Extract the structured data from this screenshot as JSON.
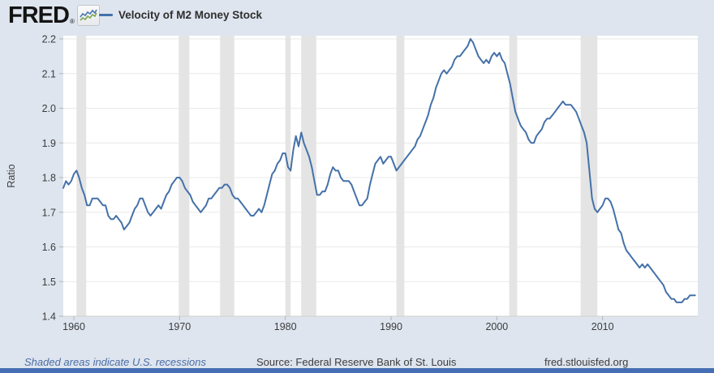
{
  "header": {
    "logo_text": "FRED",
    "logo_reg": "®"
  },
  "footer": {
    "recession_note": "Shaded areas indicate U.S. recessions",
    "source": "Source: Federal Reserve Bank of St. Louis",
    "site": "fred.stlouisfed.org"
  },
  "colors": {
    "page_bg": "#dee5ef",
    "plot_bg": "#ffffff",
    "line": "#4471a9",
    "recession_band": "#e4e4e4",
    "gridline": "#e9e9e9",
    "axis_line": "#cfcfcf",
    "tick_mark": "#b5b5b5",
    "axis_text": "#3c3c3c",
    "logo_icon_blue": "#4a77b4",
    "logo_icon_green": "#7ca653"
  },
  "chart_data": {
    "type": "line",
    "title": "Velocity of M2 Money Stock",
    "ylabel": "Ratio",
    "legend_position": "top",
    "grid": true,
    "frequency": "quarterly",
    "xlim": [
      1959,
      2019
    ],
    "ylim": [
      1.4,
      2.2
    ],
    "x_start": 1959.0,
    "x_step": 0.25,
    "y_ticks": [
      1.4,
      1.5,
      1.6,
      1.7,
      1.8,
      1.9,
      2.0,
      2.1,
      2.2
    ],
    "x_ticks": [
      1960,
      1970,
      1980,
      1990,
      2000,
      2010
    ],
    "recessions": [
      [
        1960.25,
        1961.17
      ],
      [
        1969.92,
        1970.92
      ],
      [
        1973.83,
        1975.17
      ],
      [
        1980.0,
        1980.5
      ],
      [
        1981.5,
        1982.92
      ],
      [
        1990.5,
        1991.25
      ],
      [
        2001.17,
        2001.92
      ],
      [
        2007.92,
        2009.5
      ]
    ],
    "values": [
      1.77,
      1.79,
      1.78,
      1.79,
      1.81,
      1.82,
      1.8,
      1.77,
      1.75,
      1.72,
      1.72,
      1.74,
      1.74,
      1.74,
      1.73,
      1.72,
      1.72,
      1.69,
      1.68,
      1.68,
      1.69,
      1.68,
      1.67,
      1.65,
      1.66,
      1.67,
      1.69,
      1.71,
      1.72,
      1.74,
      1.74,
      1.72,
      1.7,
      1.69,
      1.7,
      1.71,
      1.72,
      1.71,
      1.73,
      1.75,
      1.76,
      1.78,
      1.79,
      1.8,
      1.8,
      1.79,
      1.77,
      1.76,
      1.75,
      1.73,
      1.72,
      1.71,
      1.7,
      1.71,
      1.72,
      1.74,
      1.74,
      1.75,
      1.76,
      1.77,
      1.77,
      1.78,
      1.78,
      1.77,
      1.75,
      1.74,
      1.74,
      1.73,
      1.72,
      1.71,
      1.7,
      1.69,
      1.69,
      1.7,
      1.71,
      1.7,
      1.72,
      1.75,
      1.78,
      1.81,
      1.82,
      1.84,
      1.85,
      1.87,
      1.87,
      1.83,
      1.82,
      1.88,
      1.92,
      1.89,
      1.93,
      1.9,
      1.88,
      1.86,
      1.83,
      1.79,
      1.75,
      1.75,
      1.76,
      1.76,
      1.78,
      1.81,
      1.83,
      1.82,
      1.82,
      1.8,
      1.79,
      1.79,
      1.79,
      1.78,
      1.76,
      1.74,
      1.72,
      1.72,
      1.73,
      1.74,
      1.78,
      1.81,
      1.84,
      1.85,
      1.86,
      1.84,
      1.85,
      1.86,
      1.86,
      1.84,
      1.82,
      1.83,
      1.84,
      1.85,
      1.86,
      1.87,
      1.88,
      1.89,
      1.91,
      1.92,
      1.94,
      1.96,
      1.98,
      2.01,
      2.03,
      2.06,
      2.08,
      2.1,
      2.11,
      2.1,
      2.11,
      2.12,
      2.14,
      2.15,
      2.15,
      2.16,
      2.17,
      2.18,
      2.2,
      2.19,
      2.17,
      2.15,
      2.14,
      2.13,
      2.14,
      2.13,
      2.15,
      2.16,
      2.15,
      2.16,
      2.14,
      2.13,
      2.1,
      2.07,
      2.03,
      1.99,
      1.97,
      1.95,
      1.94,
      1.93,
      1.91,
      1.9,
      1.9,
      1.92,
      1.93,
      1.94,
      1.96,
      1.97,
      1.97,
      1.98,
      1.99,
      2.0,
      2.01,
      2.02,
      2.01,
      2.01,
      2.01,
      2.0,
      1.99,
      1.97,
      1.95,
      1.93,
      1.9,
      1.82,
      1.74,
      1.71,
      1.7,
      1.71,
      1.72,
      1.74,
      1.74,
      1.73,
      1.71,
      1.68,
      1.65,
      1.64,
      1.61,
      1.59,
      1.58,
      1.57,
      1.56,
      1.55,
      1.54,
      1.55,
      1.54,
      1.55,
      1.54,
      1.53,
      1.52,
      1.51,
      1.5,
      1.49,
      1.47,
      1.46,
      1.45,
      1.45,
      1.44,
      1.44,
      1.44,
      1.45,
      1.45,
      1.46,
      1.46,
      1.46
    ]
  }
}
